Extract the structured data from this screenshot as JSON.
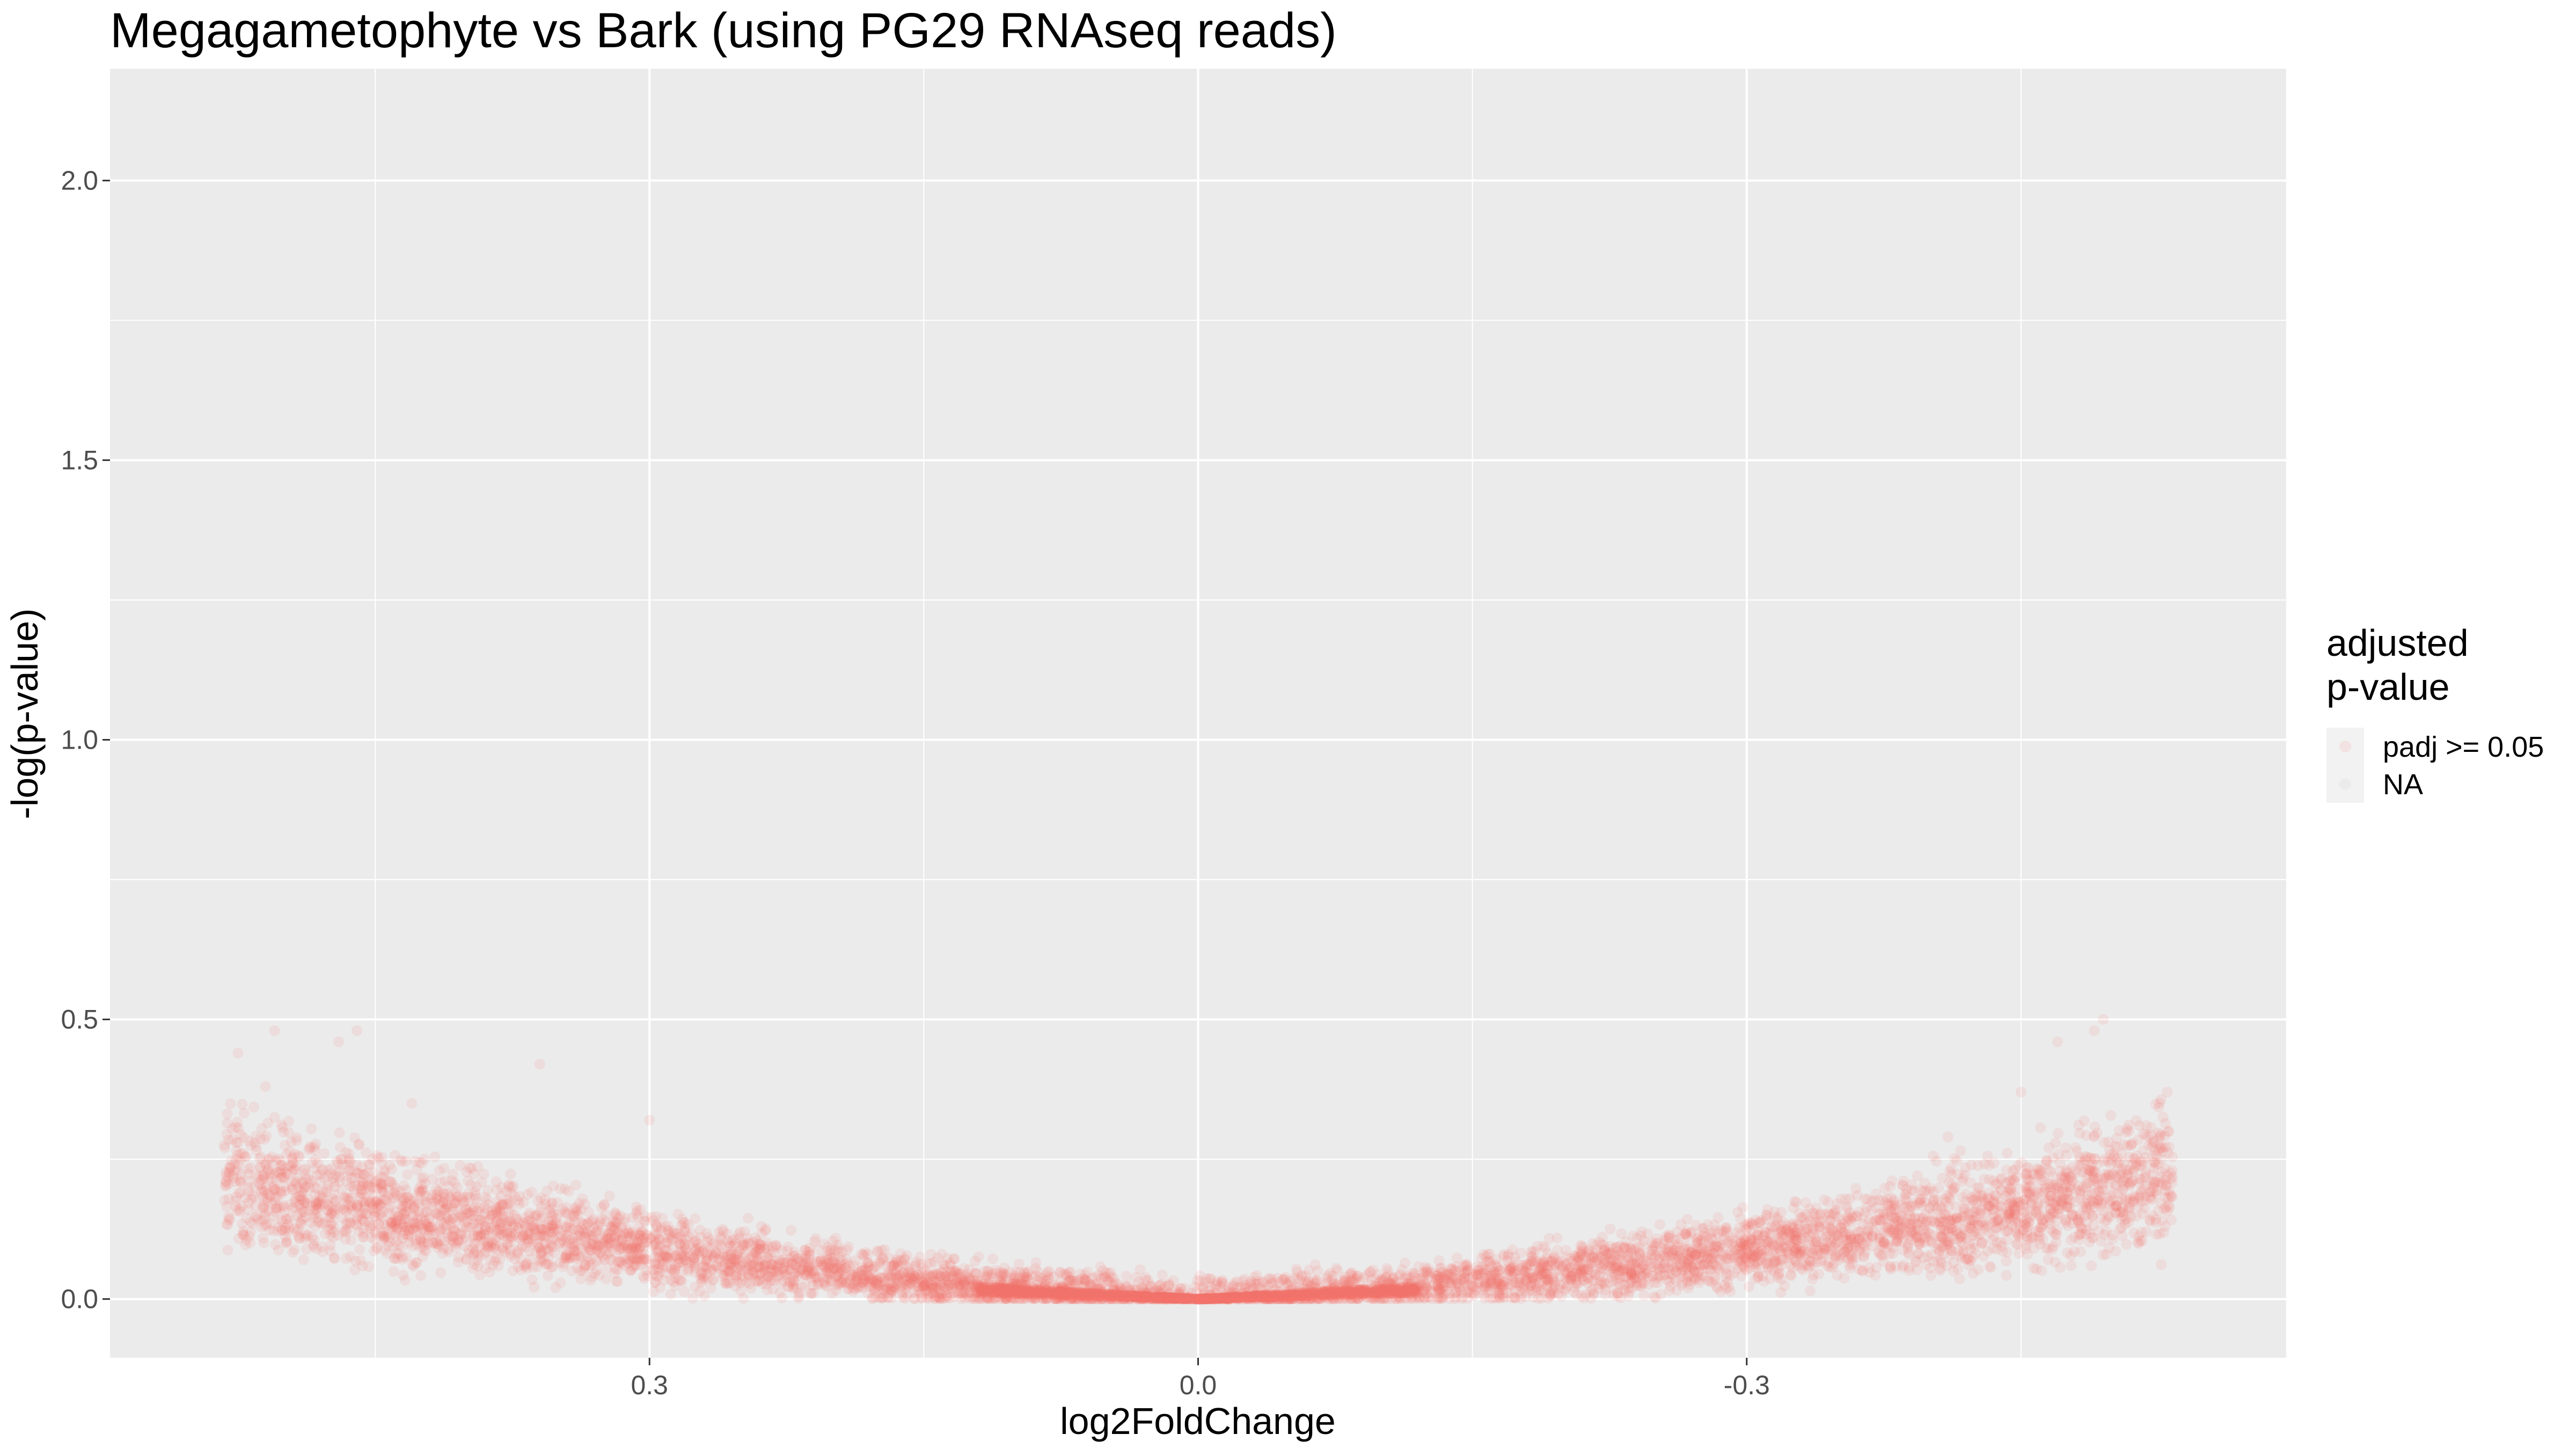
{
  "chart_data": {
    "type": "scatter",
    "title": "Megagametophyte vs Bark (using PG29 RNAseq reads)",
    "xlabel": "log2FoldChange",
    "ylabel": "-log(p-value)",
    "x_axis": {
      "reversed": true,
      "range": [
        0.595,
        -0.595
      ],
      "ticks": [
        0.3,
        0.0,
        -0.3
      ],
      "tick_labels": [
        "0.3",
        "0.0",
        "-0.3"
      ],
      "minor_ticks": [
        0.45,
        0.15,
        -0.15,
        -0.45
      ]
    },
    "y_axis": {
      "range": [
        -0.105,
        2.2
      ],
      "ticks": [
        0.0,
        0.5,
        1.0,
        1.5,
        2.0
      ],
      "tick_labels": [
        "0.0",
        "0.5",
        "1.0",
        "1.5",
        "2.0"
      ],
      "minor_ticks": [
        0.25,
        0.75,
        1.25,
        1.75
      ]
    },
    "grid": true,
    "panel_background": "#ebebeb",
    "grid_color": "#ffffff",
    "point_color": "#f8766d",
    "point_alpha": 0.12,
    "legend": {
      "title_lines": [
        "adjusted",
        "p-value"
      ],
      "position": "right",
      "entries": [
        {
          "label": "padj >= 0.05",
          "color": "#f8766d"
        },
        {
          "label": "NA",
          "color": "#bdbdbd"
        }
      ]
    },
    "series": [
      {
        "name": "padj >= 0.05",
        "description_of_distribution": "V-shaped cloud: -log(p-value) near 0 at log2FoldChange 0, rising roughly linearly to about 0.1-0.3 typical at |log2FoldChange| ~0.53, with outliers up to ~0.5.",
        "x_extent": [
          -0.533,
          0.533
        ],
        "y_extent": [
          0.0,
          0.51
        ],
        "highlighted_points": [
          {
            "x": 0.525,
            "y": 0.44
          },
          {
            "x": 0.51,
            "y": 0.38
          },
          {
            "x": 0.505,
            "y": 0.48
          },
          {
            "x": 0.46,
            "y": 0.48
          },
          {
            "x": 0.47,
            "y": 0.46
          },
          {
            "x": 0.43,
            "y": 0.35
          },
          {
            "x": 0.36,
            "y": 0.42
          },
          {
            "x": 0.3,
            "y": 0.32
          },
          {
            "x": -0.47,
            "y": 0.46
          },
          {
            "x": -0.495,
            "y": 0.5
          },
          {
            "x": -0.49,
            "y": 0.48
          },
          {
            "x": -0.45,
            "y": 0.37
          },
          {
            "x": -0.53,
            "y": 0.37
          },
          {
            "x": -0.41,
            "y": 0.29
          }
        ]
      }
    ]
  }
}
